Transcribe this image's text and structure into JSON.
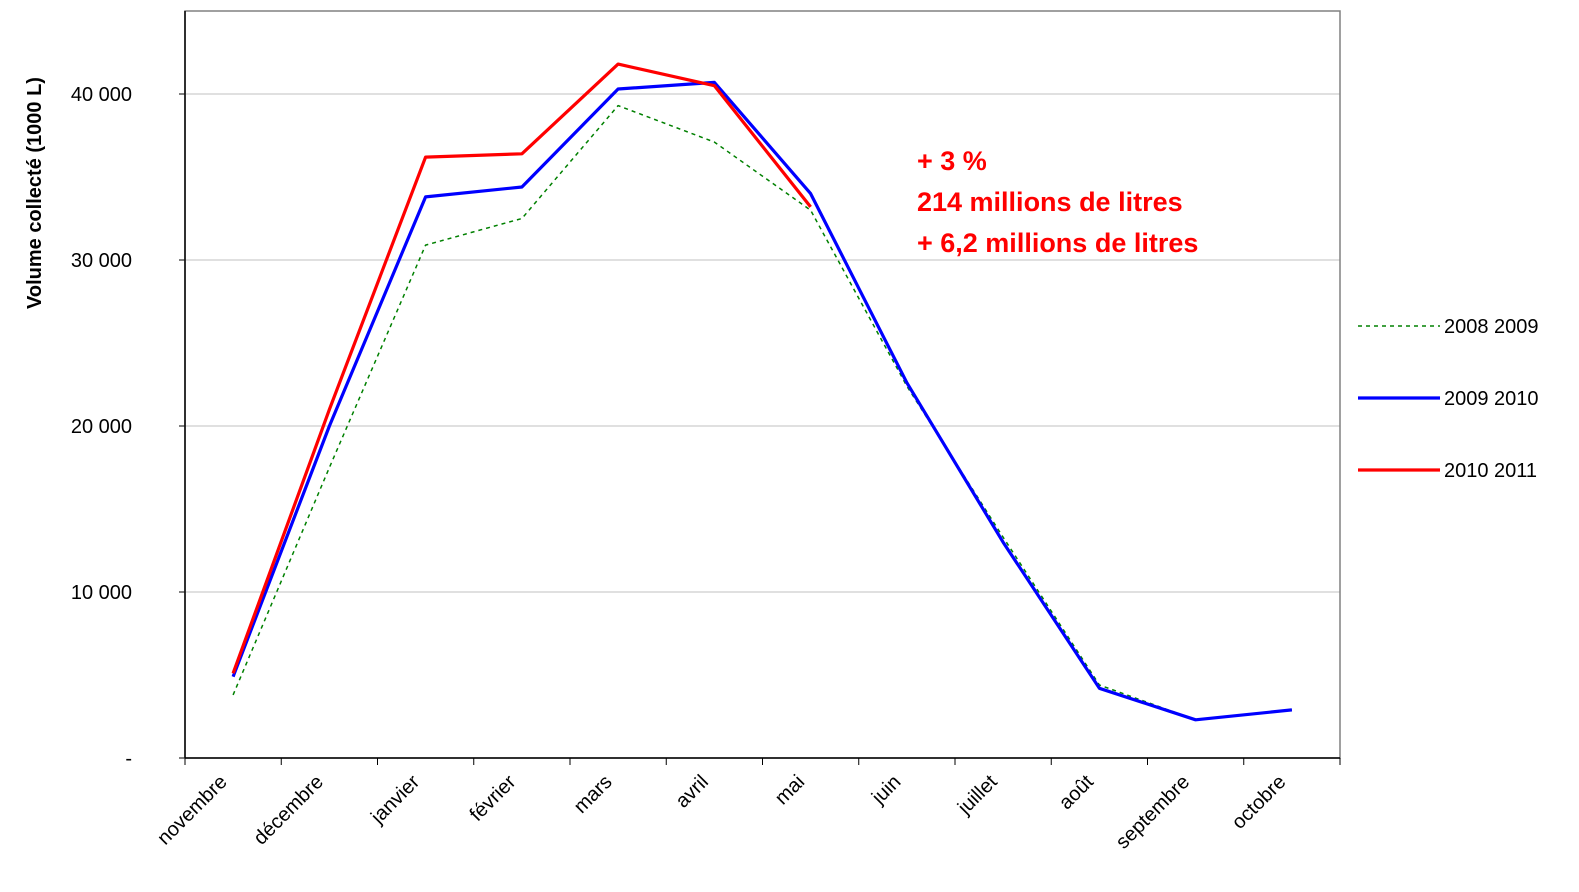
{
  "chart_data": {
    "type": "line",
    "categories": [
      "novembre",
      "décembre",
      "janvier",
      "février",
      "mars",
      "avril",
      "mai",
      "juin",
      "juillet",
      "août",
      "septembre",
      "octobre"
    ],
    "ylabel": "Volume collecté (1000 L)",
    "ylim": [
      0,
      45000
    ],
    "yticks": [
      {
        "value": 0,
        "label": "-"
      },
      {
        "value": 10000,
        "label": "10 000"
      },
      {
        "value": 20000,
        "label": "20 000"
      },
      {
        "value": 30000,
        "label": "30 000"
      },
      {
        "value": 40000,
        "label": "40 000"
      }
    ],
    "grid": true,
    "legend": "right",
    "series": [
      {
        "name": "2008 2009",
        "color": "#008000",
        "style": "dotted",
        "values": [
          3800,
          17500,
          30900,
          32500,
          39300,
          37100,
          33000,
          22400,
          13300,
          4400,
          2300,
          2900
        ]
      },
      {
        "name": "2009 2010",
        "color": "#0000ff",
        "style": "solid",
        "values": [
          4900,
          20000,
          33800,
          34400,
          40300,
          40700,
          34000,
          22600,
          13000,
          4200,
          2300,
          2900
        ]
      },
      {
        "name": "2010 2011",
        "color": "#ff0000",
        "style": "solid",
        "values": [
          5100,
          21000,
          36200,
          36400,
          41800,
          40500,
          33200,
          null,
          null,
          null,
          null,
          null
        ]
      }
    ],
    "annotations": [
      "+ 3 %",
      "214 millions de litres",
      "+ 6,2 millions de litres"
    ],
    "annotation_color": "#ff0000"
  }
}
